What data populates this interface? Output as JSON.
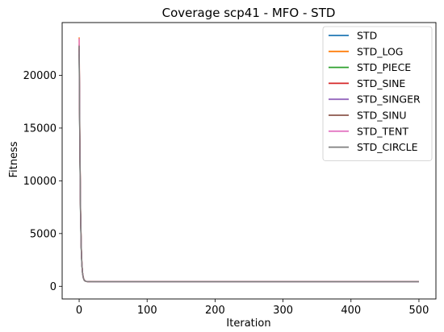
{
  "chart_data": {
    "type": "line",
    "title": "Coverage scp41 - MFO - STD",
    "xlabel": "Iteration",
    "ylabel": "Fitness",
    "xlim": [
      -25,
      525
    ],
    "ylim": [
      -1200,
      25000
    ],
    "xticks": [
      0,
      100,
      200,
      300,
      400,
      500
    ],
    "yticks": [
      0,
      5000,
      10000,
      15000,
      20000
    ],
    "grid": false,
    "legend_position": "top-right",
    "x": [
      0,
      1,
      2,
      3,
      4,
      5,
      6,
      7,
      8,
      10,
      12,
      15,
      20,
      50,
      100,
      200,
      300,
      400,
      500
    ],
    "series": [
      {
        "name": "STD",
        "color": "#1f77b4",
        "values": [
          22500,
          13500,
          7200,
          3800,
          2100,
          1250,
          850,
          640,
          540,
          470,
          450,
          440,
          435,
          432,
          430,
          430,
          430,
          430,
          430
        ]
      },
      {
        "name": "STD_LOG",
        "color": "#ff7f0e",
        "values": [
          23600,
          14200,
          7600,
          4000,
          2200,
          1300,
          880,
          660,
          550,
          475,
          455,
          445,
          438,
          434,
          432,
          432,
          432,
          432,
          432
        ]
      },
      {
        "name": "STD_PIECE",
        "color": "#2ca02c",
        "values": [
          22000,
          13200,
          7000,
          3700,
          2050,
          1220,
          830,
          630,
          530,
          465,
          448,
          440,
          434,
          431,
          430,
          430,
          430,
          430,
          430
        ]
      },
      {
        "name": "STD_SINE",
        "color": "#d62728",
        "values": [
          22700,
          13600,
          7300,
          3850,
          2120,
          1260,
          855,
          645,
          542,
          470,
          452,
          442,
          436,
          433,
          431,
          431,
          431,
          431,
          431
        ]
      },
      {
        "name": "STD_SINGER",
        "color": "#9467bd",
        "values": [
          22300,
          13400,
          7100,
          3750,
          2080,
          1240,
          845,
          638,
          536,
          468,
          450,
          441,
          435,
          432,
          430,
          430,
          430,
          430,
          430
        ]
      },
      {
        "name": "STD_SINU",
        "color": "#8c564b",
        "values": [
          22900,
          13800,
          7400,
          3900,
          2150,
          1280,
          865,
          650,
          545,
          472,
          453,
          443,
          437,
          433,
          431,
          431,
          431,
          431,
          431
        ]
      },
      {
        "name": "STD_TENT",
        "color": "#e377c2",
        "values": [
          23500,
          14100,
          7550,
          3980,
          2190,
          1295,
          875,
          655,
          548,
          474,
          454,
          444,
          437,
          434,
          432,
          432,
          432,
          432,
          432
        ]
      },
      {
        "name": "STD_CIRCLE",
        "color": "#7f7f7f",
        "values": [
          22800,
          13700,
          7350,
          3870,
          2130,
          1270,
          860,
          648,
          544,
          471,
          452,
          442,
          436,
          433,
          431,
          431,
          431,
          431,
          431
        ]
      }
    ]
  }
}
